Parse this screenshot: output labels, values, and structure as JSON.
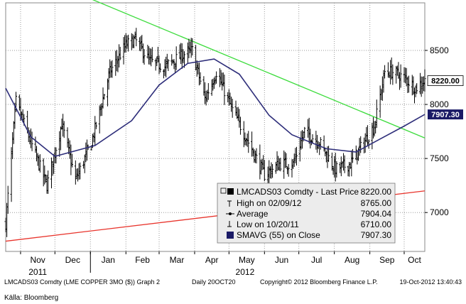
{
  "chart_data": {
    "type": "line",
    "style": "ohlc-bars",
    "security": "LMCADS03 Comdty",
    "grid": true,
    "ylim": [
      6640,
      8940
    ],
    "y_ticks": [
      "7000",
      "7500",
      "8000",
      "8500"
    ],
    "x_months": [
      {
        "label": "Nov",
        "date": "2011-11-01"
      },
      {
        "label": "Dec",
        "date": "2011-12-01"
      },
      {
        "label": "Jan",
        "date": "2012-01-01"
      },
      {
        "label": "Feb",
        "date": "2012-02-01"
      },
      {
        "label": "Mar",
        "date": "2012-03-01"
      },
      {
        "label": "Apr",
        "date": "2012-04-01"
      },
      {
        "label": "May",
        "date": "2012-05-01"
      },
      {
        "label": "Jun",
        "date": "2012-06-01"
      },
      {
        "label": "Jul",
        "date": "2012-07-01"
      },
      {
        "label": "Aug",
        "date": "2012-08-01"
      },
      {
        "label": "Sep",
        "date": "2012-09-01"
      },
      {
        "label": "Oct",
        "date": "2012-10-01"
      }
    ],
    "x_years": [
      {
        "label": "2011",
        "date": "2011-11-16"
      },
      {
        "label": "2012",
        "date": "2012-05-15"
      }
    ],
    "x_range": [
      "2011-10-19",
      "2012-10-19"
    ],
    "price_tags": {
      "last": {
        "text": "8220.00",
        "value": 8220
      },
      "smavg": {
        "text": "7907.30",
        "value": 7907.3
      }
    },
    "price_anchors": [
      {
        "date": "2011-10-19",
        "value": 6900
      },
      {
        "date": "2011-10-28",
        "value": 8030
      },
      {
        "date": "2011-11-10",
        "value": 7650
      },
      {
        "date": "2011-11-24",
        "value": 7250
      },
      {
        "date": "2011-12-07",
        "value": 7820
      },
      {
        "date": "2011-12-19",
        "value": 7300
      },
      {
        "date": "2012-01-02",
        "value": 7650
      },
      {
        "date": "2012-01-18",
        "value": 8300
      },
      {
        "date": "2012-02-01",
        "value": 8550
      },
      {
        "date": "2012-02-09",
        "value": 8600
      },
      {
        "date": "2012-02-22",
        "value": 8400
      },
      {
        "date": "2012-03-06",
        "value": 8350
      },
      {
        "date": "2012-03-20",
        "value": 8450
      },
      {
        "date": "2012-03-30",
        "value": 8500
      },
      {
        "date": "2012-04-10",
        "value": 8050
      },
      {
        "date": "2012-04-20",
        "value": 8300
      },
      {
        "date": "2012-05-04",
        "value": 7950
      },
      {
        "date": "2012-05-18",
        "value": 7650
      },
      {
        "date": "2012-06-01",
        "value": 7350
      },
      {
        "date": "2012-06-14",
        "value": 7450
      },
      {
        "date": "2012-06-26",
        "value": 7450
      },
      {
        "date": "2012-07-06",
        "value": 7750
      },
      {
        "date": "2012-07-19",
        "value": 7650
      },
      {
        "date": "2012-08-02",
        "value": 7400
      },
      {
        "date": "2012-08-15",
        "value": 7450
      },
      {
        "date": "2012-08-27",
        "value": 7650
      },
      {
        "date": "2012-09-05",
        "value": 7800
      },
      {
        "date": "2012-09-14",
        "value": 8300
      },
      {
        "date": "2012-09-21",
        "value": 8300
      },
      {
        "date": "2012-10-01",
        "value": 8250
      },
      {
        "date": "2012-10-11",
        "value": 8150
      },
      {
        "date": "2012-10-19",
        "value": 8220
      }
    ],
    "smavg_series": [
      {
        "date": "2011-10-19",
        "value": 8150
      },
      {
        "date": "2011-11-10",
        "value": 7700
      },
      {
        "date": "2011-12-01",
        "value": 7520
      },
      {
        "date": "2012-01-05",
        "value": 7620
      },
      {
        "date": "2012-02-06",
        "value": 7850
      },
      {
        "date": "2012-03-01",
        "value": 8180
      },
      {
        "date": "2012-03-26",
        "value": 8380
      },
      {
        "date": "2012-04-18",
        "value": 8420
      },
      {
        "date": "2012-05-10",
        "value": 8280
      },
      {
        "date": "2012-06-05",
        "value": 7900
      },
      {
        "date": "2012-06-25",
        "value": 7720
      },
      {
        "date": "2012-07-25",
        "value": 7590
      },
      {
        "date": "2012-08-20",
        "value": 7560
      },
      {
        "date": "2012-09-10",
        "value": 7680
      },
      {
        "date": "2012-10-01",
        "value": 7800
      },
      {
        "date": "2012-10-19",
        "value": 7907.3
      }
    ],
    "trendlines": [
      {
        "color": "#3ddc3d",
        "from": {
          "date": "2011-12-27",
          "value": 9000
        },
        "to": {
          "date": "2012-10-19",
          "value": 7690
        }
      },
      {
        "color": "#e8342c",
        "from": {
          "date": "2011-10-19",
          "value": 6735
        },
        "to": {
          "date": "2012-10-19",
          "value": 7200
        }
      }
    ],
    "legend": {
      "title": "LMCADS03 Comdty - Last Price",
      "title_value": "8220.00",
      "rows": [
        {
          "label": "High on 02/09/12",
          "value": "8765.00"
        },
        {
          "label": "Average",
          "value": "7904.04"
        },
        {
          "label": "Low on 10/20/11",
          "value": "6710.00"
        },
        {
          "label": "SMAVG (55) on Close",
          "value": "7907.30"
        }
      ]
    }
  },
  "footer": {
    "left": "LMCADS03 Comdty (LME COPPER  3MO ($)) Graph 2",
    "middle": "Daily 20OCT20",
    "right_copyright": "Copyright© 2012 Bloomberg Finance L.P.",
    "right_time": "19-Oct-2012 13:40:43"
  },
  "source": "Källa: Bloomberg",
  "colors": {
    "price": "#000000",
    "smavg": "#2e2e7a",
    "grid": "#9a9a9a",
    "last_tag_bg": "#ffffff",
    "smavg_tag_bg": "#1a1a66",
    "legend_bg": "#ececec"
  }
}
